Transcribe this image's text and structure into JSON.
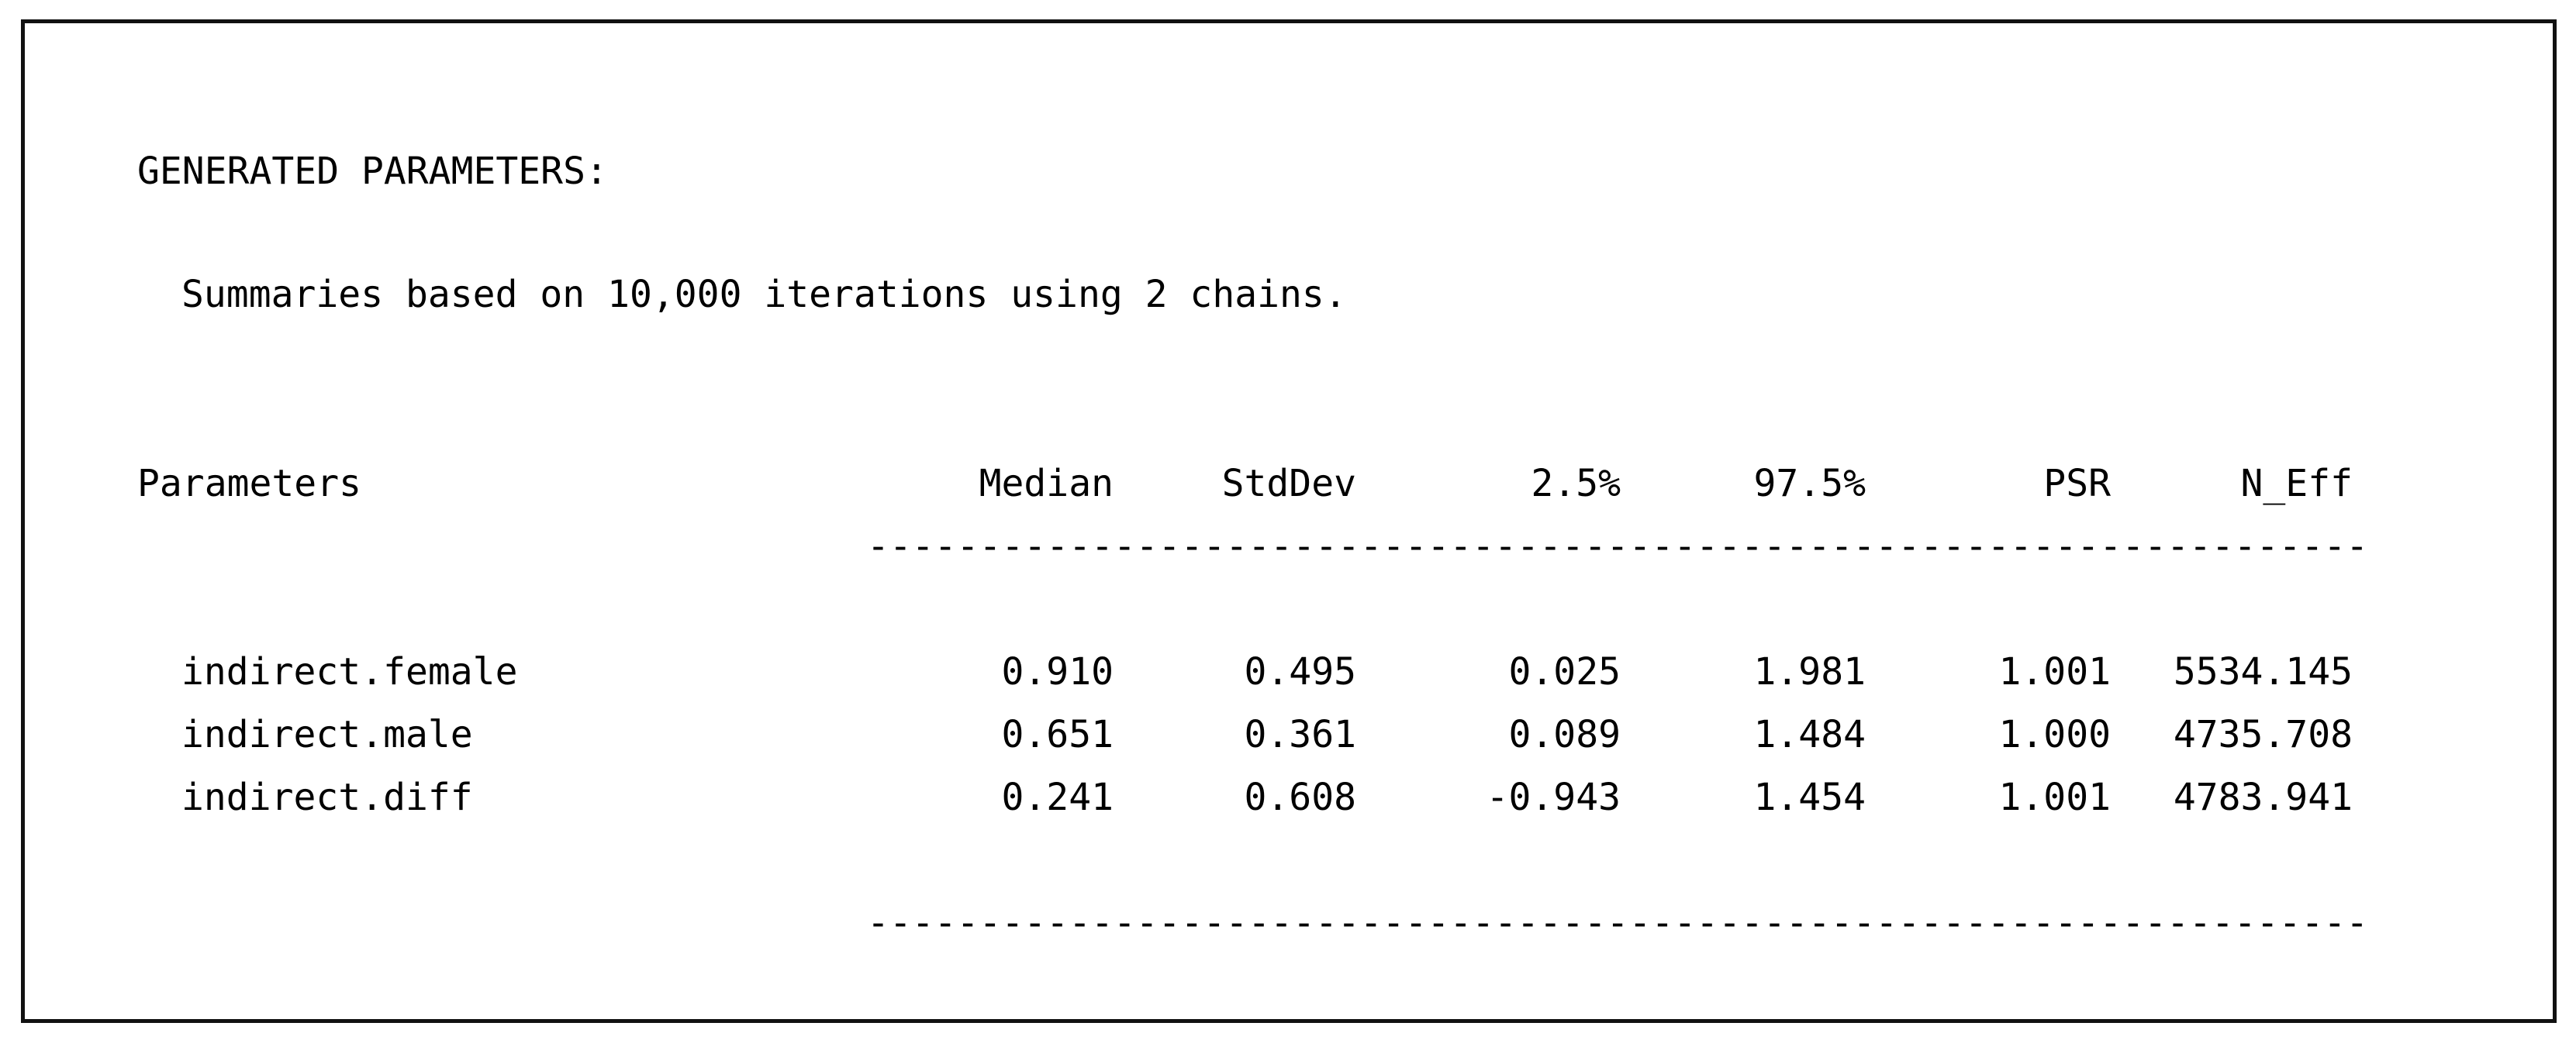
{
  "output": {
    "title": "GENERATED PARAMETERS:",
    "subtitle": "Summaries based on 10,000 iterations using 2 chains.",
    "colors": {
      "text": "#000000",
      "background": "#ffffff",
      "border": "#111111"
    },
    "table": {
      "param_header": "Parameters",
      "columns": [
        "Median",
        "StdDev",
        "2.5%",
        "97.5%",
        "PSR",
        "N_Eff"
      ],
      "separator": "-------------------------------------------------------------------",
      "rows": [
        {
          "name": "indirect.female",
          "values": [
            "0.910",
            "0.495",
            "0.025",
            "1.981",
            "1.001",
            "5534.145"
          ]
        },
        {
          "name": "indirect.male",
          "values": [
            "0.651",
            "0.361",
            "0.089",
            "1.484",
            "1.000",
            "4735.708"
          ]
        },
        {
          "name": "indirect.diff",
          "values": [
            "0.241",
            "0.608",
            "-0.943",
            "1.454",
            "1.001",
            "4783.941"
          ]
        }
      ]
    }
  }
}
